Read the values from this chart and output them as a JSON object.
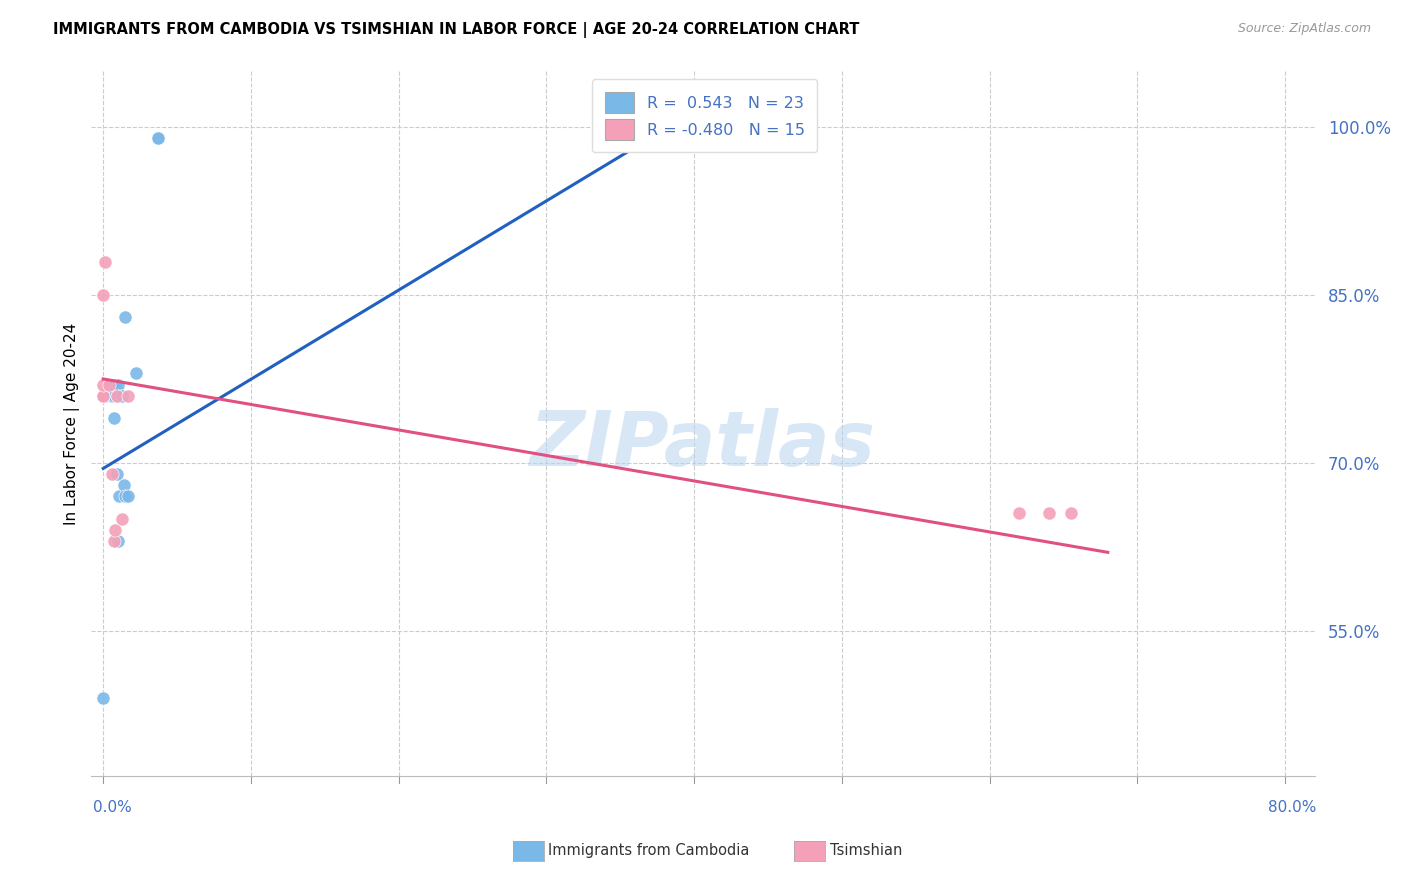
{
  "title": "IMMIGRANTS FROM CAMBODIA VS TSIMSHIAN IN LABOR FORCE | AGE 20-24 CORRELATION CHART",
  "source": "Source: ZipAtlas.com",
  "ylabel": "In Labor Force | Age 20-24",
  "yticks": [
    "100.0%",
    "85.0%",
    "70.0%",
    "55.0%"
  ],
  "ytick_vals": [
    1.0,
    0.85,
    0.7,
    0.55
  ],
  "xlim": [
    -0.008,
    0.82
  ],
  "ylim": [
    0.42,
    1.05
  ],
  "watermark": "ZIPatlas",
  "cambodia_scatter_x": [
    0.0,
    0.002,
    0.005,
    0.005,
    0.005,
    0.006,
    0.007,
    0.007,
    0.008,
    0.009,
    0.009,
    0.01,
    0.01,
    0.011,
    0.011,
    0.013,
    0.014,
    0.015,
    0.015,
    0.017,
    0.022,
    0.037,
    0.037
  ],
  "cambodia_scatter_y": [
    0.49,
    0.76,
    0.76,
    0.76,
    0.77,
    0.76,
    0.74,
    0.76,
    0.77,
    0.76,
    0.69,
    0.63,
    0.77,
    0.76,
    0.67,
    0.76,
    0.68,
    0.83,
    0.67,
    0.67,
    0.78,
    0.99,
    0.99
  ],
  "tsimshian_scatter_x": [
    0.0,
    0.0,
    0.0,
    0.0,
    0.001,
    0.004,
    0.006,
    0.007,
    0.008,
    0.009,
    0.013,
    0.017,
    0.62,
    0.64,
    0.655
  ],
  "tsimshian_scatter_y": [
    0.76,
    0.76,
    0.77,
    0.85,
    0.88,
    0.77,
    0.69,
    0.63,
    0.64,
    0.76,
    0.65,
    0.76,
    0.655,
    0.655,
    0.655
  ],
  "cambodia_line_x": [
    0.0,
    0.37
  ],
  "cambodia_line_y": [
    0.695,
    0.99
  ],
  "tsimshian_line_x": [
    0.0,
    0.68
  ],
  "tsimshian_line_y": [
    0.775,
    0.62
  ],
  "cambodia_color": "#7ab8e8",
  "tsimshian_color": "#f4a0b8",
  "cambodia_edge_color": "#5a9fd4",
  "tsimshian_edge_color": "#e07898",
  "cambodia_line_color": "#2060c0",
  "tsimshian_line_color": "#e05080",
  "scatter_size": 90,
  "background_color": "#ffffff",
  "grid_color": "#cccccc",
  "ytick_color": "#4472C4",
  "xtick_color": "#4472C4",
  "legend_label1": "R =  0.543   N = 23",
  "legend_label2": "R = -0.480   N = 15",
  "bottom_label1": "Immigrants from Cambodia",
  "bottom_label2": "Tsimshian"
}
